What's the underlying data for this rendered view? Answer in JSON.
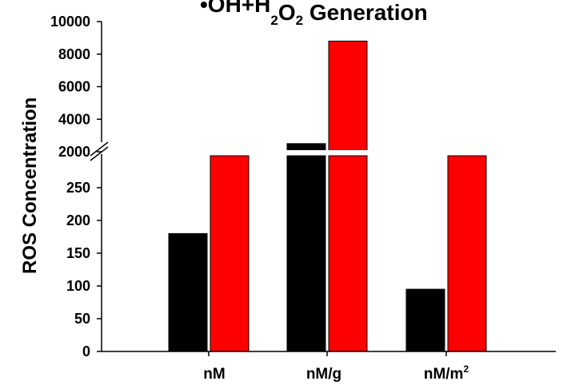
{
  "chart_data": {
    "type": "bar",
    "title": {
      "prefix": "•OH+H",
      "sub1": "2",
      "mid": "O",
      "sub2": "2",
      "suffix": " Generation"
    },
    "ylabel": "ROS Concentration",
    "xlabel": "",
    "categories": [
      "nM",
      "nM/g",
      "nM/m2"
    ],
    "category_labels": [
      {
        "base": "nM",
        "sup": ""
      },
      {
        "base": "nM/g",
        "sup": ""
      },
      {
        "base": "nM/m",
        "sup": "2"
      }
    ],
    "series": [
      {
        "name": "black series",
        "color": "#000000",
        "values": [
          180,
          2500,
          95
        ]
      },
      {
        "name": "red series",
        "color": "#ff0000",
        "values": [
          2000,
          8800,
          2000
        ]
      }
    ],
    "axis_break": {
      "lower_range": [
        0,
        300
      ],
      "upper_range": [
        2000,
        10000
      ]
    },
    "lower_ticks": [
      "0",
      "50",
      "100",
      "150",
      "200",
      "250"
    ],
    "lower_tick_values": [
      0,
      50,
      100,
      150,
      200,
      250
    ],
    "upper_ticks": [
      "2000",
      "4000",
      "6000",
      "8000",
      "10000"
    ],
    "upper_tick_values": [
      2000,
      4000,
      6000,
      8000,
      10000
    ],
    "grid": false,
    "legend": "none"
  }
}
